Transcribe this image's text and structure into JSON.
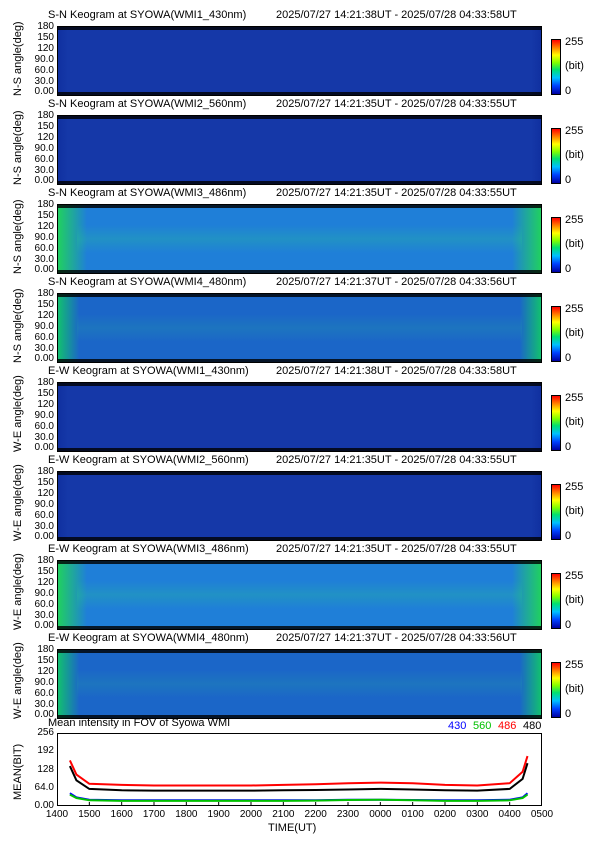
{
  "panels": [
    {
      "title": "S-N Keogram at SYOWA(WMI1_430nm)",
      "range": "2025/07/27 14:21:38UT - 2025/07/28 04:33:58UT",
      "ylabel": "N-S angle(deg)",
      "intensity": "low"
    },
    {
      "title": "S-N Keogram at SYOWA(WMI2_560nm)",
      "range": "2025/07/27 14:21:35UT - 2025/07/28 04:33:55UT",
      "ylabel": "N-S angle(deg)",
      "intensity": "low"
    },
    {
      "title": "S-N Keogram at SYOWA(WMI3_486nm)",
      "range": "2025/07/27 14:21:35UT - 2025/07/28 04:33:55UT",
      "ylabel": "N-S angle(deg)",
      "intensity": "high"
    },
    {
      "title": "S-N Keogram at SYOWA(WMI4_480nm)",
      "range": "2025/07/27 14:21:37UT - 2025/07/28 04:33:56UT",
      "ylabel": "N-S angle(deg)",
      "intensity": "mid"
    },
    {
      "title": "E-W Keogram at SYOWA(WMI1_430nm)",
      "range": "2025/07/27 14:21:38UT - 2025/07/28 04:33:58UT",
      "ylabel": "W-E angle(deg)",
      "intensity": "low"
    },
    {
      "title": "E-W Keogram at SYOWA(WMI2_560nm)",
      "range": "2025/07/27 14:21:35UT - 2025/07/28 04:33:55UT",
      "ylabel": "W-E angle(deg)",
      "intensity": "low"
    },
    {
      "title": "E-W Keogram at SYOWA(WMI3_486nm)",
      "range": "2025/07/27 14:21:35UT - 2025/07/28 04:33:55UT",
      "ylabel": "W-E angle(deg)",
      "intensity": "high"
    },
    {
      "title": "E-W Keogram at SYOWA(WMI4_480nm)",
      "range": "2025/07/27 14:21:37UT - 2025/07/28 04:33:56UT",
      "ylabel": "W-E angle(deg)",
      "intensity": "mid"
    }
  ],
  "angle_ticks": [
    "180",
    "150",
    "120",
    "90.0",
    "60.0",
    "30.0",
    "0.00"
  ],
  "colorbar": {
    "max": "255",
    "unit": "(bit)",
    "min": "0"
  },
  "mean_panel": {
    "title": "Mean intensity in FOV of Syowa WMI",
    "ylabel": "MEAN(BIT)",
    "yticks": [
      "256",
      "192",
      "128",
      "64.0",
      "0.00"
    ],
    "legend": [
      {
        "label": "430",
        "color": "#0000ff"
      },
      {
        "label": "560",
        "color": "#00c000"
      },
      {
        "label": "486",
        "color": "#ff0000"
      },
      {
        "label": "480",
        "color": "#000000"
      }
    ]
  },
  "xaxis": {
    "title": "TIME(UT)",
    "ticks": [
      "1400",
      "1500",
      "1600",
      "1700",
      "1800",
      "1900",
      "2000",
      "2100",
      "2200",
      "2300",
      "0000",
      "0100",
      "0200",
      "0300",
      "0400",
      "0500"
    ]
  },
  "chart_data": {
    "type": "line",
    "title": "Mean intensity in FOV of Syowa WMI",
    "xlabel": "TIME(UT)",
    "ylabel": "MEAN(BIT)",
    "ylim": [
      0,
      256
    ],
    "x": [
      14.4,
      14.6,
      15.0,
      16.0,
      17.0,
      18.0,
      19.0,
      20.0,
      21.0,
      22.0,
      23.0,
      24.0,
      25.0,
      26.0,
      27.0,
      28.0,
      28.4,
      28.55
    ],
    "series": [
      {
        "name": "486",
        "color": "#ff0000",
        "values": [
          160,
          110,
          78,
          74,
          72,
          72,
          72,
          72,
          74,
          76,
          80,
          82,
          80,
          74,
          72,
          80,
          120,
          175
        ]
      },
      {
        "name": "480",
        "color": "#000000",
        "values": [
          140,
          90,
          60,
          55,
          54,
          54,
          54,
          54,
          55,
          56,
          58,
          60,
          58,
          55,
          54,
          60,
          95,
          150
        ]
      },
      {
        "name": "430",
        "color": "#0000ff",
        "values": [
          45,
          30,
          22,
          20,
          20,
          20,
          20,
          20,
          20,
          20,
          22,
          22,
          21,
          20,
          20,
          22,
          30,
          45
        ]
      },
      {
        "name": "560",
        "color": "#00c000",
        "values": [
          40,
          28,
          20,
          18,
          18,
          18,
          18,
          18,
          18,
          19,
          21,
          22,
          20,
          18,
          18,
          20,
          28,
          40
        ]
      }
    ]
  }
}
